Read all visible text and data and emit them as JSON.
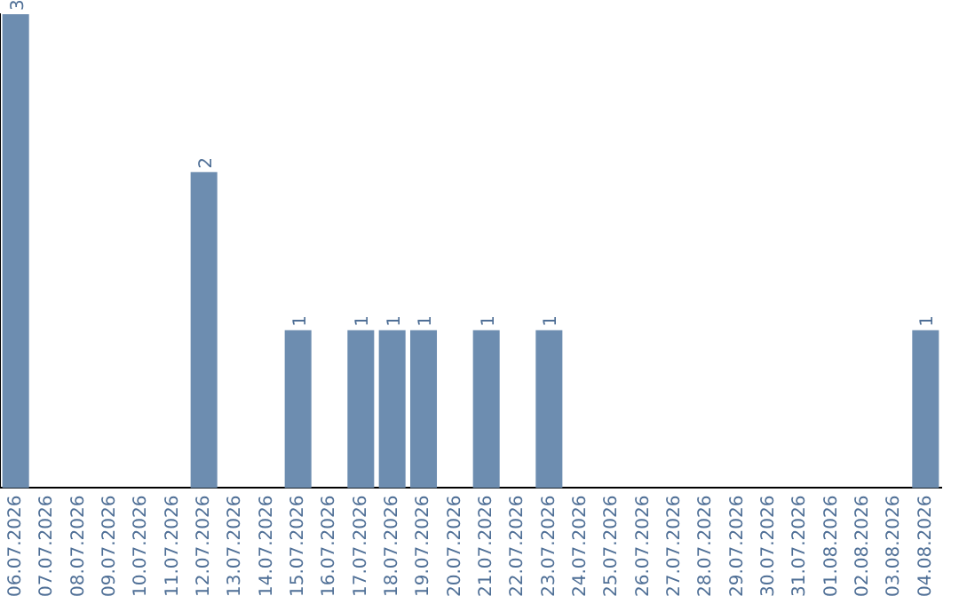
{
  "chart_data": {
    "type": "bar",
    "categories": [
      "06.07.2026",
      "07.07.2026",
      "08.07.2026",
      "09.07.2026",
      "10.07.2026",
      "11.07.2026",
      "12.07.2026",
      "13.07.2026",
      "14.07.2026",
      "15.07.2026",
      "16.07.2026",
      "17.07.2026",
      "18.07.2026",
      "19.07.2026",
      "20.07.2026",
      "21.07.2026",
      "22.07.2026",
      "23.07.2026",
      "24.07.2026",
      "25.07.2026",
      "26.07.2026",
      "27.07.2026",
      "28.07.2026",
      "29.07.2026",
      "30.07.2026",
      "31.07.2026",
      "01.08.2026",
      "02.08.2026",
      "03.08.2026",
      "04.08.2026"
    ],
    "values": [
      3,
      0,
      0,
      0,
      0,
      0,
      2,
      0,
      0,
      1,
      0,
      1,
      1,
      1,
      0,
      1,
      0,
      1,
      0,
      0,
      0,
      0,
      0,
      0,
      0,
      0,
      0,
      0,
      0,
      1
    ],
    "value_labels": [
      "3",
      null,
      null,
      null,
      null,
      null,
      "2",
      null,
      null,
      "1",
      null,
      "1",
      "1",
      "1",
      null,
      "1",
      null,
      "1",
      null,
      null,
      null,
      null,
      null,
      null,
      null,
      null,
      null,
      null,
      null,
      "1"
    ],
    "color": "#6d8db0",
    "grid": false,
    "legend": false
  }
}
